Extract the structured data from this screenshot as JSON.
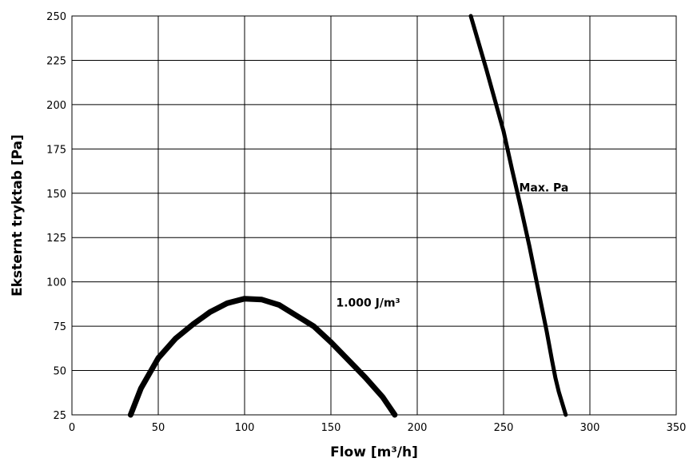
{
  "chart_data": {
    "type": "line",
    "title": "",
    "xlabel": "Flow [m³/h]",
    "ylabel": "Eksternt tryktab [Pa]",
    "xlim": [
      0,
      350
    ],
    "ylim": [
      25,
      250
    ],
    "xticks": [
      0,
      50,
      100,
      150,
      200,
      250,
      300,
      350
    ],
    "yticks": [
      25,
      50,
      75,
      100,
      125,
      150,
      175,
      200,
      225,
      250
    ],
    "grid": true,
    "legend": "none",
    "series": [
      {
        "name": "1.000 J/m³",
        "color": "#000000",
        "x": [
          34,
          40,
          50,
          60,
          70,
          80,
          90,
          100,
          110,
          120,
          130,
          140,
          150,
          160,
          170,
          180,
          187
        ],
        "y": [
          25,
          40,
          57,
          68,
          76,
          83,
          88,
          90.5,
          90,
          87,
          81,
          75,
          66,
          56,
          46,
          35,
          25
        ]
      },
      {
        "name": "Max. Pa",
        "color": "#000000",
        "x": [
          231,
          240,
          250,
          255,
          260,
          265,
          270,
          275,
          278,
          280,
          282,
          286
        ],
        "y": [
          250,
          220,
          185,
          163,
          142,
          120,
          96,
          72,
          56,
          46,
          38,
          25
        ]
      }
    ],
    "annotations": [
      {
        "text": "1.000 J/m³",
        "x": 153,
        "y": 86
      },
      {
        "text": "Max. Pa",
        "x": 259,
        "y": 151
      }
    ]
  }
}
